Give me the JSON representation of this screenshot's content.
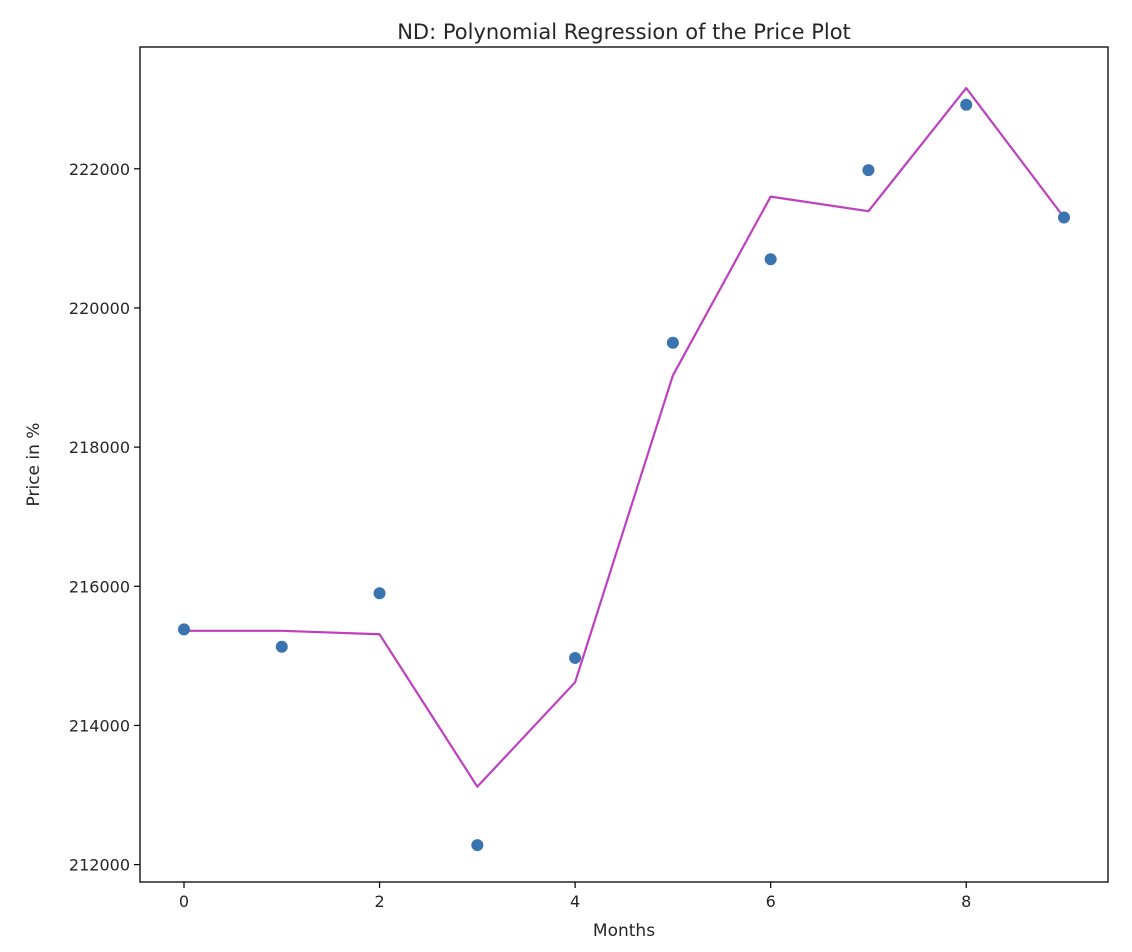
{
  "chart_data": {
    "type": "scatter",
    "title": "ND: Polynomial Regression of the Price Plot",
    "xlabel": "Months",
    "ylabel": "Price in %",
    "xlim": [
      -0.45,
      9.45
    ],
    "ylim": [
      211750,
      223750
    ],
    "x_ticks": [
      0,
      2,
      4,
      6,
      8
    ],
    "y_ticks": [
      212000,
      214000,
      216000,
      218000,
      220000,
      222000
    ],
    "grid": false,
    "series": [
      {
        "kind": "scatter",
        "color": "#3a74b0",
        "x": [
          0,
          1,
          2,
          3,
          4,
          5,
          6,
          7,
          8,
          9
        ],
        "y": [
          215380,
          215130,
          215900,
          212280,
          214970,
          219500,
          220700,
          221980,
          222920,
          221300
        ]
      },
      {
        "kind": "line",
        "color": "#bf40bf",
        "x": [
          0,
          1,
          2,
          3,
          4,
          5,
          6,
          7,
          8,
          9
        ],
        "y": [
          215360,
          215360,
          215310,
          213120,
          214620,
          219030,
          221600,
          221390,
          223160,
          221300
        ]
      }
    ]
  }
}
